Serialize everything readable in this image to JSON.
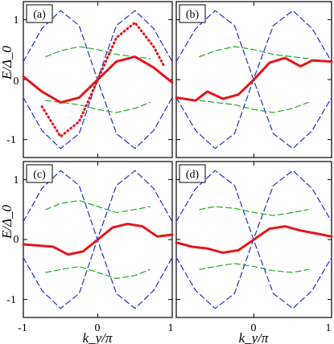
{
  "chart_data": {
    "type": "line",
    "layout": "2x2 panels",
    "shared_axes": {
      "xlabel": "k_y/π",
      "ylabel": "E/Δ_0",
      "xlim": [
        -1,
        1
      ],
      "ylim": [
        -1.3,
        1.3
      ],
      "xticks": [
        -1,
        0,
        1
      ],
      "yticks": [
        -1,
        0,
        1
      ],
      "grid": false
    },
    "colors": {
      "blue": "#1f2fd0",
      "green": "#1fa81f",
      "black": "#000000",
      "red": "#e3171c"
    },
    "panels": [
      {
        "label": "(a)",
        "series": [
          {
            "color": "blue",
            "style": "dashed",
            "x": [
              -1,
              -0.75,
              -0.5,
              -0.25,
              0,
              0.25,
              0.5,
              0.75,
              1
            ],
            "y": [
              -0.3,
              -0.85,
              -1.15,
              -0.9,
              0.02,
              0.9,
              1.15,
              0.85,
              0.3
            ]
          },
          {
            "color": "blue",
            "style": "dashed",
            "x": [
              -1,
              -0.75,
              -0.5,
              -0.25,
              0,
              0.25,
              0.5,
              0.75,
              1
            ],
            "y": [
              0.3,
              0.85,
              1.15,
              0.9,
              -0.02,
              -0.9,
              -1.15,
              -0.85,
              -0.3
            ]
          },
          {
            "color": "green",
            "style": "dashed",
            "x": [
              -0.7,
              -0.5,
              -0.25,
              0,
              0.25,
              0.5,
              0.7
            ],
            "y": [
              0.38,
              0.48,
              0.55,
              0.5,
              0.42,
              0.38,
              0.35
            ]
          },
          {
            "color": "green",
            "style": "dashed",
            "x": [
              -0.7,
              -0.5,
              -0.25,
              0,
              0.25,
              0.5,
              0.7
            ],
            "y": [
              -0.35,
              -0.38,
              -0.42,
              -0.5,
              -0.55,
              -0.48,
              -0.38
            ]
          },
          {
            "color": "red",
            "style": "solid",
            "x": [
              -1,
              -0.75,
              -0.5,
              -0.25,
              0,
              0.25,
              0.5,
              0.75,
              1
            ],
            "y": [
              0.05,
              -0.2,
              -0.38,
              -0.3,
              0,
              0.3,
              0.38,
              0.2,
              -0.05
            ]
          },
          {
            "color": "red",
            "style": "dotted",
            "x": [
              -0.75,
              -0.5,
              -0.25,
              0,
              0.25,
              0.5,
              0.75,
              0.9
            ],
            "y": [
              -0.45,
              -0.95,
              -0.7,
              0,
              0.7,
              0.95,
              0.55,
              0.2
            ]
          }
        ]
      },
      {
        "label": "(b)",
        "series": [
          {
            "color": "blue",
            "style": "dashed",
            "x": [
              -1,
              -0.75,
              -0.5,
              -0.25,
              0,
              0.25,
              0.5,
              0.75,
              1
            ],
            "y": [
              -0.3,
              -0.85,
              -1.15,
              -0.9,
              0.02,
              0.9,
              1.15,
              0.85,
              0.3
            ]
          },
          {
            "color": "blue",
            "style": "dashed",
            "x": [
              -1,
              -0.75,
              -0.5,
              -0.25,
              0,
              0.25,
              0.5,
              0.75,
              1
            ],
            "y": [
              0.3,
              0.85,
              1.15,
              0.9,
              -0.02,
              -0.9,
              -1.15,
              -0.85,
              -0.3
            ]
          },
          {
            "color": "green",
            "style": "dashed",
            "x": [
              -0.7,
              -0.5,
              -0.25,
              0,
              0.25,
              0.5,
              0.7
            ],
            "y": [
              0.38,
              0.48,
              0.55,
              0.5,
              0.42,
              0.38,
              0.35
            ]
          },
          {
            "color": "green",
            "style": "dashed",
            "x": [
              -0.7,
              -0.5,
              -0.25,
              0,
              0.25,
              0.5,
              0.7
            ],
            "y": [
              -0.35,
              -0.38,
              -0.42,
              -0.5,
              -0.55,
              -0.48,
              -0.38
            ]
          },
          {
            "color": "red",
            "style": "solid",
            "x": [
              -1,
              -0.75,
              -0.6,
              -0.4,
              -0.2,
              0,
              0.2,
              0.4,
              0.6,
              0.75,
              1
            ],
            "y": [
              -0.3,
              -0.35,
              -0.2,
              -0.32,
              -0.25,
              0,
              0.28,
              0.36,
              0.22,
              0.32,
              0.3
            ]
          }
        ]
      },
      {
        "label": "(c)",
        "series": [
          {
            "color": "blue",
            "style": "dashed",
            "x": [
              -1,
              -0.75,
              -0.5,
              -0.25,
              0,
              0.25,
              0.5,
              0.75,
              1
            ],
            "y": [
              -0.3,
              -0.85,
              -1.15,
              -0.9,
              0.02,
              0.9,
              1.15,
              0.85,
              0.3
            ]
          },
          {
            "color": "blue",
            "style": "dashed",
            "x": [
              -1,
              -0.75,
              -0.5,
              -0.25,
              0,
              0.25,
              0.5,
              0.75,
              1
            ],
            "y": [
              0.3,
              0.85,
              1.15,
              0.9,
              -0.02,
              -0.9,
              -1.15,
              -0.85,
              -0.3
            ]
          },
          {
            "color": "green",
            "style": "dashed",
            "x": [
              -0.7,
              -0.5,
              -0.25,
              0,
              0.25,
              0.5,
              0.7
            ],
            "y": [
              0.5,
              0.6,
              0.65,
              0.55,
              0.45,
              0.5,
              0.55
            ]
          },
          {
            "color": "green",
            "style": "dashed",
            "x": [
              -0.7,
              -0.5,
              -0.25,
              0,
              0.25,
              0.5,
              0.7
            ],
            "y": [
              -0.55,
              -0.5,
              -0.45,
              -0.55,
              -0.65,
              -0.6,
              -0.5
            ]
          },
          {
            "color": "red",
            "style": "solid",
            "x": [
              -1,
              -0.8,
              -0.6,
              -0.4,
              -0.2,
              0,
              0.2,
              0.4,
              0.6,
              0.8,
              1
            ],
            "y": [
              -0.08,
              -0.1,
              -0.12,
              -0.25,
              -0.2,
              0,
              0.2,
              0.26,
              0.22,
              0.05,
              0.08
            ]
          }
        ]
      },
      {
        "label": "(d)",
        "series": [
          {
            "color": "blue",
            "style": "dashed",
            "x": [
              -1,
              -0.75,
              -0.5,
              -0.25,
              0,
              0.25,
              0.5,
              0.75,
              1
            ],
            "y": [
              -0.3,
              -0.85,
              -1.15,
              -0.9,
              0.02,
              0.9,
              1.15,
              0.85,
              0.3
            ]
          },
          {
            "color": "blue",
            "style": "dashed",
            "x": [
              -1,
              -0.75,
              -0.5,
              -0.25,
              0,
              0.25,
              0.5,
              0.75,
              1
            ],
            "y": [
              0.3,
              0.85,
              1.15,
              0.9,
              -0.02,
              -0.9,
              -1.15,
              -0.85,
              -0.3
            ]
          },
          {
            "color": "green",
            "style": "dashed",
            "x": [
              -0.7,
              -0.5,
              -0.25,
              0,
              0.25,
              0.5,
              0.7
            ],
            "y": [
              0.5,
              0.55,
              0.52,
              0.45,
              0.4,
              0.45,
              0.5
            ]
          },
          {
            "color": "green",
            "style": "dashed",
            "x": [
              -0.7,
              -0.5,
              -0.25,
              0,
              0.25,
              0.5,
              0.7
            ],
            "y": [
              -0.5,
              -0.45,
              -0.4,
              -0.45,
              -0.52,
              -0.55,
              -0.5
            ]
          },
          {
            "color": "red",
            "style": "solid",
            "x": [
              -1,
              -0.8,
              -0.6,
              -0.4,
              -0.2,
              0,
              0.2,
              0.4,
              0.6,
              0.8,
              1
            ],
            "y": [
              -0.05,
              -0.12,
              -0.15,
              -0.22,
              -0.18,
              0,
              0.18,
              0.22,
              0.15,
              0.1,
              0.05
            ]
          }
        ]
      }
    ]
  }
}
